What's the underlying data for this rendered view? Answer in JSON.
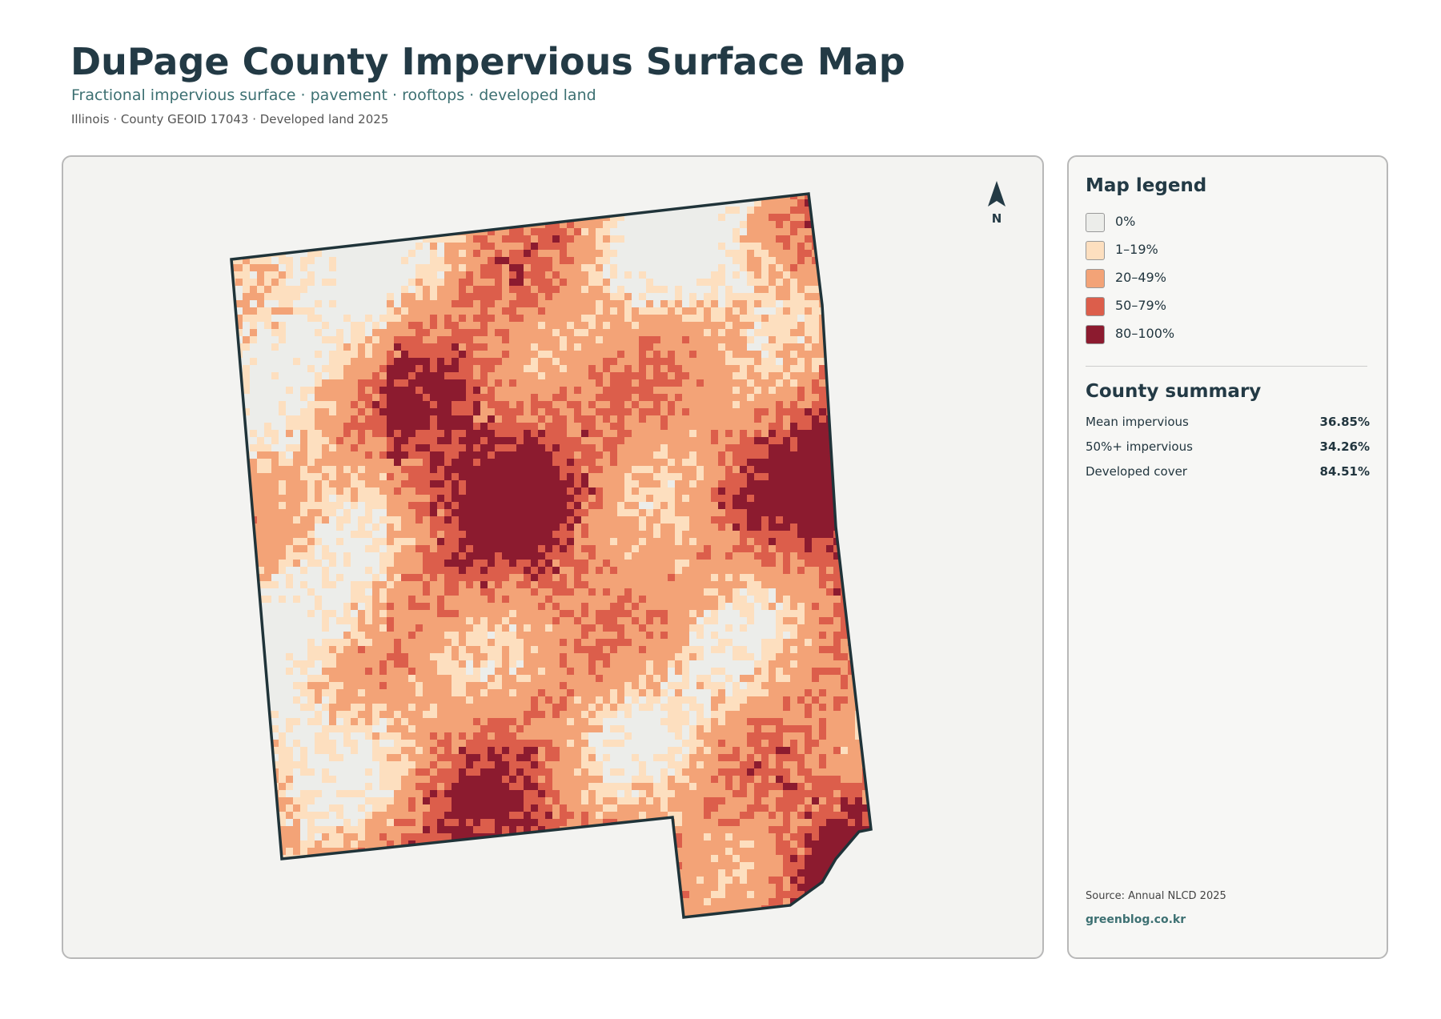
{
  "header": {
    "title": "DuPage County Impervious Surface Map",
    "subtitle": "Fractional impervious surface · pavement · rooftops · developed land",
    "meta": "Illinois · County GEOID 17043 · Developed land 2025"
  },
  "map": {
    "north_label": "N"
  },
  "legend": {
    "title": "Map legend",
    "items": [
      {
        "label": "0%",
        "color": "#ecedea"
      },
      {
        "label": "1–19%",
        "color": "#fddfbf"
      },
      {
        "label": "20–49%",
        "color": "#f3a377"
      },
      {
        "label": "50–79%",
        "color": "#dc5e4b"
      },
      {
        "label": "80–100%",
        "color": "#8c1b2f"
      }
    ]
  },
  "summary": {
    "title": "County summary",
    "rows": [
      {
        "label": "Mean impervious",
        "value": "36.85%"
      },
      {
        "label": "50%+ impervious",
        "value": "34.26%"
      },
      {
        "label": "Developed cover",
        "value": "84.51%"
      }
    ]
  },
  "footer": {
    "source": "Source: Annual NLCD 2025",
    "credit": "greenblog.co.kr"
  }
}
